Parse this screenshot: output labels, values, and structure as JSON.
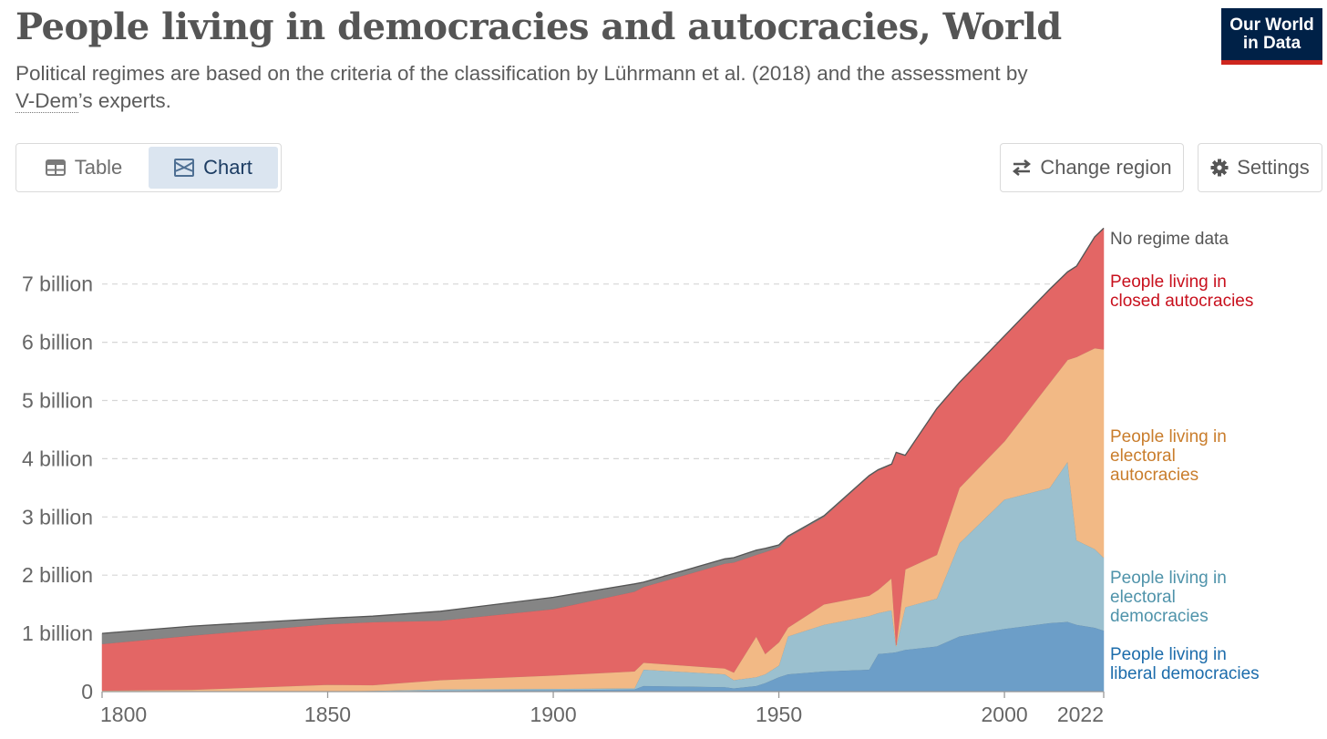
{
  "header": {
    "title": "People living in democracies and autocracies, World",
    "subtitle_pre": "Political regimes are based on the criteria of the classification by Lührmann et al. (2018) and the assessment by",
    "subtitle_link": "V-Dem",
    "subtitle_post": "’s experts.",
    "logo_line1": "Our World",
    "logo_line2": "in Data"
  },
  "tabs": [
    {
      "label": "Table",
      "icon": "table-icon",
      "active": false
    },
    {
      "label": "Chart",
      "icon": "chart-icon",
      "active": true
    }
  ],
  "buttons": {
    "change_region": "Change region",
    "settings": "Settings"
  },
  "colors": {
    "liberal": "#6c9ec8",
    "electoral_dem": "#9bc0cf",
    "electoral_auto": "#f2b985",
    "closed_auto": "#e36665",
    "no_data": "#858585",
    "liberal_label": "#1c6cab",
    "electoral_dem_label": "#4f93aa",
    "electoral_auto_label": "#c97d2c",
    "closed_auto_label": "#c8101d",
    "no_data_label": "#555555"
  },
  "chart_data": {
    "type": "area",
    "stacked": true,
    "title": "People living in democracies and autocracies, World",
    "xlabel": "",
    "ylabel": "",
    "xlim": [
      1800,
      2022
    ],
    "ylim": [
      0,
      8
    ],
    "x_ticks": [
      "1800",
      "1850",
      "1900",
      "1950",
      "2000",
      "2022"
    ],
    "y_ticks": [
      {
        "value": 0,
        "label": "0"
      },
      {
        "value": 1,
        "label": "1 billion"
      },
      {
        "value": 2,
        "label": "2 billion"
      },
      {
        "value": 3,
        "label": "3 billion"
      },
      {
        "value": 4,
        "label": "4 billion"
      },
      {
        "value": 5,
        "label": "5 billion"
      },
      {
        "value": 6,
        "label": "6 billion"
      },
      {
        "value": 7,
        "label": "7 billion"
      }
    ],
    "grid": "horizontal-dashed",
    "legend": "right-inline",
    "units": "billion people",
    "x": [
      1800,
      1820,
      1850,
      1860,
      1875,
      1900,
      1918,
      1920,
      1938,
      1940,
      1945,
      1947,
      1950,
      1952,
      1960,
      1970,
      1972,
      1975,
      1976,
      1978,
      1985,
      1990,
      2000,
      2010,
      2014,
      2016,
      2020,
      2022
    ],
    "series": [
      {
        "key": "liberal",
        "name": "People living in liberal democracies",
        "values": [
          0.0,
          0.0,
          0.0,
          0.005,
          0.02,
          0.03,
          0.04,
          0.1,
          0.08,
          0.06,
          0.1,
          0.15,
          0.25,
          0.3,
          0.35,
          0.38,
          0.65,
          0.67,
          0.68,
          0.72,
          0.78,
          0.95,
          1.08,
          1.18,
          1.2,
          1.15,
          1.1,
          1.05
        ]
      },
      {
        "key": "electoral_dem",
        "name": "People living in electoral democracies",
        "values": [
          0.005,
          0.005,
          0.005,
          0.01,
          0.02,
          0.02,
          0.02,
          0.28,
          0.22,
          0.14,
          0.15,
          0.15,
          0.2,
          0.65,
          0.8,
          0.92,
          0.7,
          0.73,
          0.1,
          0.73,
          0.82,
          1.6,
          2.22,
          2.32,
          2.75,
          1.45,
          1.35,
          1.25
        ]
      },
      {
        "key": "electoral_auto",
        "name": "People living in electoral autocracies",
        "values": [
          0.015,
          0.03,
          0.115,
          0.1,
          0.16,
          0.23,
          0.29,
          0.12,
          0.1,
          0.13,
          0.7,
          0.35,
          0.4,
          0.15,
          0.35,
          0.35,
          0.4,
          0.55,
          0.02,
          0.65,
          0.75,
          0.95,
          1.0,
          1.8,
          1.75,
          3.15,
          3.45,
          3.58
        ]
      },
      {
        "key": "closed_auto",
        "name": "People living in closed autocracies",
        "values": [
          0.8,
          0.93,
          1.04,
          1.08,
          1.02,
          1.14,
          1.37,
          1.3,
          1.8,
          1.89,
          1.4,
          1.75,
          1.63,
          1.55,
          1.5,
          2.05,
          2.05,
          1.95,
          3.3,
          1.95,
          2.5,
          1.8,
          1.8,
          1.6,
          1.5,
          1.55,
          1.9,
          2.07
        ]
      },
      {
        "key": "no_data",
        "name": "No regime data",
        "values": [
          0.18,
          0.16,
          0.1,
          0.1,
          0.16,
          0.2,
          0.13,
          0.08,
          0.08,
          0.08,
          0.08,
          0.06,
          0.04,
          0.02,
          0.02,
          0.01,
          0.01,
          0.01,
          0.01,
          0.01,
          0.01,
          0.01,
          0.01,
          0.01,
          0.01,
          0.01,
          0.01,
          0.01
        ]
      }
    ],
    "legend_labels": [
      {
        "key": "no_data",
        "text_lines": [
          "No regime data"
        ]
      },
      {
        "key": "closed_auto",
        "text_lines": [
          "People living in",
          "closed autocracies"
        ]
      },
      {
        "key": "electoral_auto",
        "text_lines": [
          "People living in",
          "electoral",
          "autocracies"
        ]
      },
      {
        "key": "electoral_dem",
        "text_lines": [
          "People living in",
          "electoral",
          "democracies"
        ]
      },
      {
        "key": "liberal",
        "text_lines": [
          "People living in",
          "liberal democracies"
        ]
      }
    ]
  }
}
